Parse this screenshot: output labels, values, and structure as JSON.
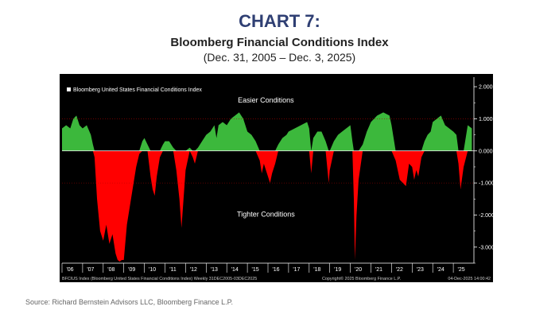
{
  "header": {
    "chart_number": "CHART 7:",
    "title": "Bloomberg Financial Conditions Index",
    "date_range": "(Dec. 31, 2005 – Dec. 3, 2025)"
  },
  "source": "Source: Richard Bernstein Advisors LLC, Bloomberg Finance L.P.",
  "colors": {
    "positive": "#3cb83c",
    "negative": "#ff0000",
    "background": "#000000",
    "axis_text": "#ffffff",
    "footer_text": "#cccccc",
    "panel_bg": "#000000"
  },
  "chart_data": {
    "type": "area",
    "title": "Bloomberg Financial Conditions Index",
    "legend": "Bloomberg United States Financial Conditions Index",
    "legend_position": "top-left",
    "ylim": [
      -3.5,
      2.2
    ],
    "yticks": [
      2,
      1,
      0,
      -1,
      -2,
      -3
    ],
    "ytick_labels": [
      "2.000",
      "1.000",
      "0.000",
      "-1.000",
      "-2.000",
      "-3.000"
    ],
    "xlim": [
      2006.0,
      2026.0
    ],
    "xticks": [
      2006,
      2007,
      2008,
      2009,
      2010,
      2011,
      2012,
      2013,
      2014,
      2015,
      2016,
      2017,
      2018,
      2019,
      2020,
      2021,
      2022,
      2023,
      2024,
      2025
    ],
    "xtick_labels": [
      "'06",
      "'07",
      "'08",
      "'09",
      "'10",
      "'11",
      "'12",
      "'13",
      "'14",
      "'15",
      "'16",
      "'17",
      "'18",
      "'19",
      "'20",
      "'21",
      "'22",
      "'23",
      "'24",
      "'25"
    ],
    "annotations": [
      {
        "text": "Easier Conditions",
        "x": 2015.9,
        "y": 1.5
      },
      {
        "text": "Tighter Conditions",
        "x": 2015.9,
        "y": -2.05
      }
    ],
    "footer_left": "BFCIUS Index (Bloomberg United States Financial Conditions Index) Weekly 31DEC2005-03DEC2025",
    "footer_center": "Copyright© 2025 Bloomberg Finance L.P.",
    "footer_right": "04-Dec-2025 14:00:42",
    "x": [
      2006.0,
      2006.2,
      2006.4,
      2006.55,
      2006.7,
      2006.85,
      2007.0,
      2007.2,
      2007.4,
      2007.5,
      2007.58,
      2007.7,
      2007.85,
      2008.0,
      2008.15,
      2008.3,
      2008.45,
      2008.6,
      2008.7,
      2008.8,
      2008.9,
      2009.0,
      2009.15,
      2009.3,
      2009.45,
      2009.6,
      2009.75,
      2009.9,
      2010.0,
      2010.15,
      2010.3,
      2010.4,
      2010.5,
      2010.6,
      2010.75,
      2010.9,
      2011.0,
      2011.2,
      2011.4,
      2011.55,
      2011.7,
      2011.8,
      2011.9,
      2012.0,
      2012.2,
      2012.35,
      2012.45,
      2012.6,
      2012.8,
      2013.0,
      2013.2,
      2013.4,
      2013.5,
      2013.6,
      2013.8,
      2014.0,
      2014.2,
      2014.4,
      2014.6,
      2014.8,
      2015.0,
      2015.2,
      2015.4,
      2015.6,
      2015.7,
      2015.8,
      2015.9,
      2016.0,
      2016.1,
      2016.2,
      2016.35,
      2016.5,
      2016.7,
      2016.9,
      2017.0,
      2017.3,
      2017.6,
      2017.9,
      2018.0,
      2018.1,
      2018.2,
      2018.4,
      2018.6,
      2018.8,
      2018.95,
      2019.0,
      2019.2,
      2019.4,
      2019.6,
      2019.8,
      2020.0,
      2020.1,
      2020.17,
      2020.22,
      2020.3,
      2020.4,
      2020.6,
      2020.8,
      2021.0,
      2021.3,
      2021.6,
      2021.9,
      2022.0,
      2022.2,
      2022.4,
      2022.55,
      2022.7,
      2022.85,
      2023.0,
      2023.1,
      2023.2,
      2023.3,
      2023.45,
      2023.6,
      2023.75,
      2023.9,
      2024.0,
      2024.2,
      2024.4,
      2024.6,
      2024.8,
      2025.0,
      2025.15,
      2025.25,
      2025.35,
      2025.5,
      2025.7,
      2025.9
    ],
    "values": [
      0.7,
      0.8,
      0.7,
      1.0,
      1.1,
      0.8,
      0.7,
      0.8,
      0.5,
      0.2,
      -0.2,
      -1.5,
      -2.5,
      -2.8,
      -2.3,
      -2.9,
      -2.6,
      -3.2,
      -3.4,
      -3.45,
      -3.4,
      -3.4,
      -2.3,
      -1.7,
      -1.1,
      -0.5,
      -0.1,
      0.3,
      0.4,
      0.2,
      -0.8,
      -1.2,
      -1.4,
      -0.8,
      -0.2,
      0.2,
      0.3,
      0.3,
      0.1,
      -0.6,
      -1.5,
      -2.4,
      -1.5,
      -0.6,
      0.1,
      -0.2,
      -0.4,
      0.1,
      0.3,
      0.5,
      0.6,
      0.8,
      0.4,
      0.8,
      0.9,
      0.8,
      1.0,
      1.1,
      1.2,
      1.0,
      0.6,
      0.5,
      0.3,
      -0.3,
      -0.7,
      -0.4,
      -0.6,
      -0.8,
      -1.0,
      -0.7,
      -0.4,
      0.2,
      0.4,
      0.5,
      0.6,
      0.7,
      0.8,
      0.9,
      0.7,
      -0.7,
      0.4,
      0.6,
      0.6,
      0.3,
      -1.0,
      -0.6,
      0.3,
      0.5,
      0.6,
      0.7,
      0.8,
      0.3,
      -1.5,
      -3.4,
      -2.0,
      -0.9,
      0.2,
      0.6,
      0.9,
      1.1,
      1.2,
      1.1,
      0.8,
      -0.3,
      -0.9,
      -1.0,
      -1.1,
      -0.4,
      -0.5,
      -0.9,
      -0.6,
      -0.8,
      -0.2,
      0.3,
      0.5,
      0.6,
      0.9,
      1.0,
      1.1,
      0.8,
      0.7,
      0.6,
      0.5,
      -0.4,
      -1.2,
      -0.5,
      0.8,
      0.7
    ]
  }
}
